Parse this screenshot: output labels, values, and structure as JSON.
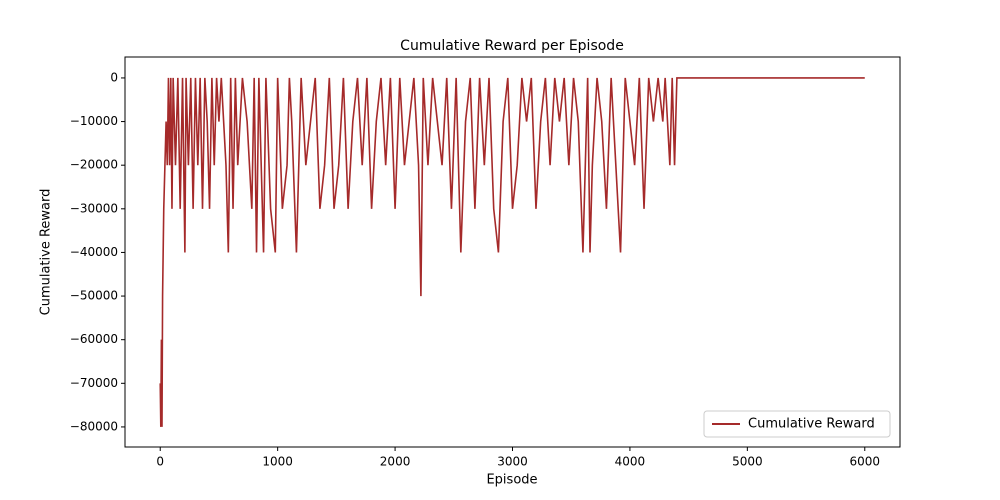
{
  "chart_data": {
    "type": "line",
    "title": "Cumulative Reward per Episode",
    "x_label": "Episode",
    "y_label": "Cumulative Reward",
    "xlim": [
      -300,
      6300
    ],
    "ylim": [
      -84600,
      4800
    ],
    "xticks": [
      0,
      1000,
      2000,
      3000,
      4000,
      5000,
      6000
    ],
    "yticks": [
      {
        "value": -80000,
        "label": "−80000"
      },
      {
        "value": -70000,
        "label": "−70000"
      },
      {
        "value": -60000,
        "label": "−60000"
      },
      {
        "value": -50000,
        "label": "−50000"
      },
      {
        "value": -40000,
        "label": "−40000"
      },
      {
        "value": -30000,
        "label": "−30000"
      },
      {
        "value": -20000,
        "label": "−20000"
      },
      {
        "value": -10000,
        "label": "−10000"
      },
      0
    ],
    "grid": false,
    "legend": "lower right",
    "x": [
      0,
      5,
      10,
      15,
      20,
      25,
      30,
      40,
      50,
      60,
      70,
      80,
      90,
      100,
      110,
      120,
      130,
      150,
      170,
      190,
      210,
      220,
      240,
      260,
      280,
      300,
      320,
      340,
      360,
      380,
      400,
      420,
      440,
      460,
      480,
      500,
      520,
      560,
      580,
      600,
      620,
      640,
      660,
      700,
      740,
      780,
      800,
      820,
      840,
      860,
      880,
      900,
      940,
      980,
      1000,
      1040,
      1080,
      1100,
      1120,
      1160,
      1200,
      1240,
      1280,
      1320,
      1360,
      1400,
      1440,
      1480,
      1520,
      1560,
      1600,
      1640,
      1680,
      1720,
      1760,
      1800,
      1840,
      1880,
      1920,
      1960,
      2000,
      2040,
      2080,
      2120,
      2160,
      2200,
      2220,
      2240,
      2280,
      2320,
      2360,
      2400,
      2440,
      2480,
      2520,
      2560,
      2600,
      2640,
      2680,
      2720,
      2760,
      2800,
      2840,
      2880,
      2920,
      2960,
      3000,
      3040,
      3080,
      3120,
      3160,
      3200,
      3240,
      3280,
      3320,
      3360,
      3400,
      3440,
      3480,
      3520,
      3560,
      3600,
      3640,
      3660,
      3680,
      3720,
      3760,
      3800,
      3840,
      3880,
      3920,
      3960,
      4000,
      4040,
      4080,
      4120,
      4160,
      4200,
      4240,
      4280,
      4300,
      4340,
      4360,
      4380,
      4400,
      5000,
      6000
    ],
    "series": [
      {
        "name": "Cumulative Reward",
        "color": "#a52a2a",
        "values": [
          -70000,
          -80000,
          -60000,
          -80000,
          -50000,
          -40000,
          -30000,
          -20000,
          -10000,
          -20000,
          0,
          -20000,
          0,
          -30000,
          0,
          -10000,
          -20000,
          0,
          -30000,
          0,
          -40000,
          0,
          -20000,
          0,
          -30000,
          0,
          -20000,
          0,
          -30000,
          0,
          -10000,
          -30000,
          0,
          -20000,
          0,
          -10000,
          0,
          -20000,
          -40000,
          0,
          -30000,
          0,
          -20000,
          0,
          -10000,
          -30000,
          0,
          -40000,
          0,
          -20000,
          -40000,
          0,
          -30000,
          -40000,
          0,
          -30000,
          -20000,
          0,
          -10000,
          -40000,
          0,
          -20000,
          -10000,
          0,
          -30000,
          -20000,
          0,
          -30000,
          -20000,
          0,
          -30000,
          -10000,
          0,
          -20000,
          0,
          -30000,
          -10000,
          0,
          -20000,
          0,
          -30000,
          0,
          -20000,
          -10000,
          0,
          -20000,
          -50000,
          0,
          -20000,
          0,
          -10000,
          -20000,
          0,
          -30000,
          0,
          -40000,
          -10000,
          0,
          -30000,
          0,
          -20000,
          0,
          -30000,
          -40000,
          -10000,
          0,
          -30000,
          -20000,
          0,
          -10000,
          0,
          -30000,
          -10000,
          0,
          -20000,
          0,
          -10000,
          0,
          -20000,
          0,
          -10000,
          -40000,
          0,
          -40000,
          -20000,
          0,
          -10000,
          -30000,
          0,
          -20000,
          -40000,
          0,
          -10000,
          -20000,
          0,
          -30000,
          0,
          -10000,
          0,
          -10000,
          0,
          -20000,
          0,
          -20000,
          0,
          0,
          0
        ]
      }
    ]
  }
}
